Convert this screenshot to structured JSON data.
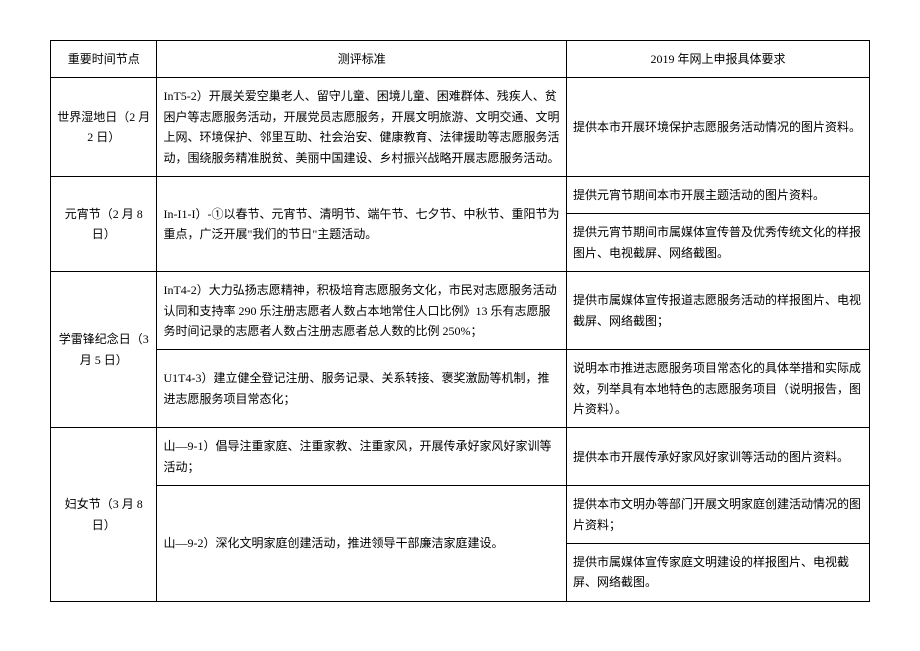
{
  "headers": {
    "time": "重要时间节点",
    "standard": "测评标准",
    "requirement": "2019 年网上申报具体要求"
  },
  "rows": {
    "r1": {
      "time": "世界湿地日（2 月 2 日）",
      "standard": "InT5-2）开展关爱空巢老人、留守儿童、困境儿童、困难群体、残疾人、贫困户等志愿服务活动，开展党员志愿服务，开展文明旅游、文明交通、文明上网、环境保护、邻里互助、社会治安、健康教育、法律援助等志愿服务活动，围绕服务精准脱贫、美丽中国建设、乡村振兴战略开展志愿服务活动。",
      "requirement": "提供本市开展环境保护志愿服务活动情况的图片资料。"
    },
    "r2": {
      "time": "元宵节（2 月 8 日）",
      "standard": "In-I1-I）-①以春节、元宵节、清明节、端午节、七夕节、中秋节、重阳节为重点，广泛开展\"我们的节日\"主题活动。",
      "req_a": "提供元宵节期间本市开展主题活动的图片资料。",
      "req_b": "提供元宵节期间市属媒体宣传普及优秀传统文化的样报图片、电视截屏、网络截图。"
    },
    "r3": {
      "time": "学雷锋纪念日（3 月 5 日）",
      "std_a": "InT4-2）大力弘扬志愿精神，积极培育志愿服务文化，市民对志愿服务活动认同和支持率 290 乐注册志愿者人数占本地常住人口比例》13 乐有志愿服务时间记录的志愿者人数占注册志愿者总人数的比例 250%；",
      "req_a": "提供市属媒体宣传报道志愿服务活动的样报图片、电视截屏、网络截图；",
      "std_b": "U1T4-3）建立健全登记注册、服务记录、关系转接、褒奖激励等机制，推进志愿服务项目常态化；",
      "req_b": "说明本市推进志愿服务项目常态化的具体举措和实际成效，列举具有本地特色的志愿服务项目（说明报告，图片资料）。"
    },
    "r4": {
      "time": "妇女节（3 月 8 日）",
      "std_a": "山—9-1）倡导注重家庭、注重家教、注重家风，开展传承好家风好家训等活动；",
      "req_a": "提供本市开展传承好家风好家训等活动的图片资料。",
      "std_b": "山—9-2）深化文明家庭创建活动，推进领导干部廉洁家庭建设。",
      "req_b": "提供本市文明办等部门开展文明家庭创建活动情况的图片资料；",
      "req_c": "提供市属媒体宣传家庭文明建设的样报图片、电视截屏、网络截图。"
    }
  }
}
